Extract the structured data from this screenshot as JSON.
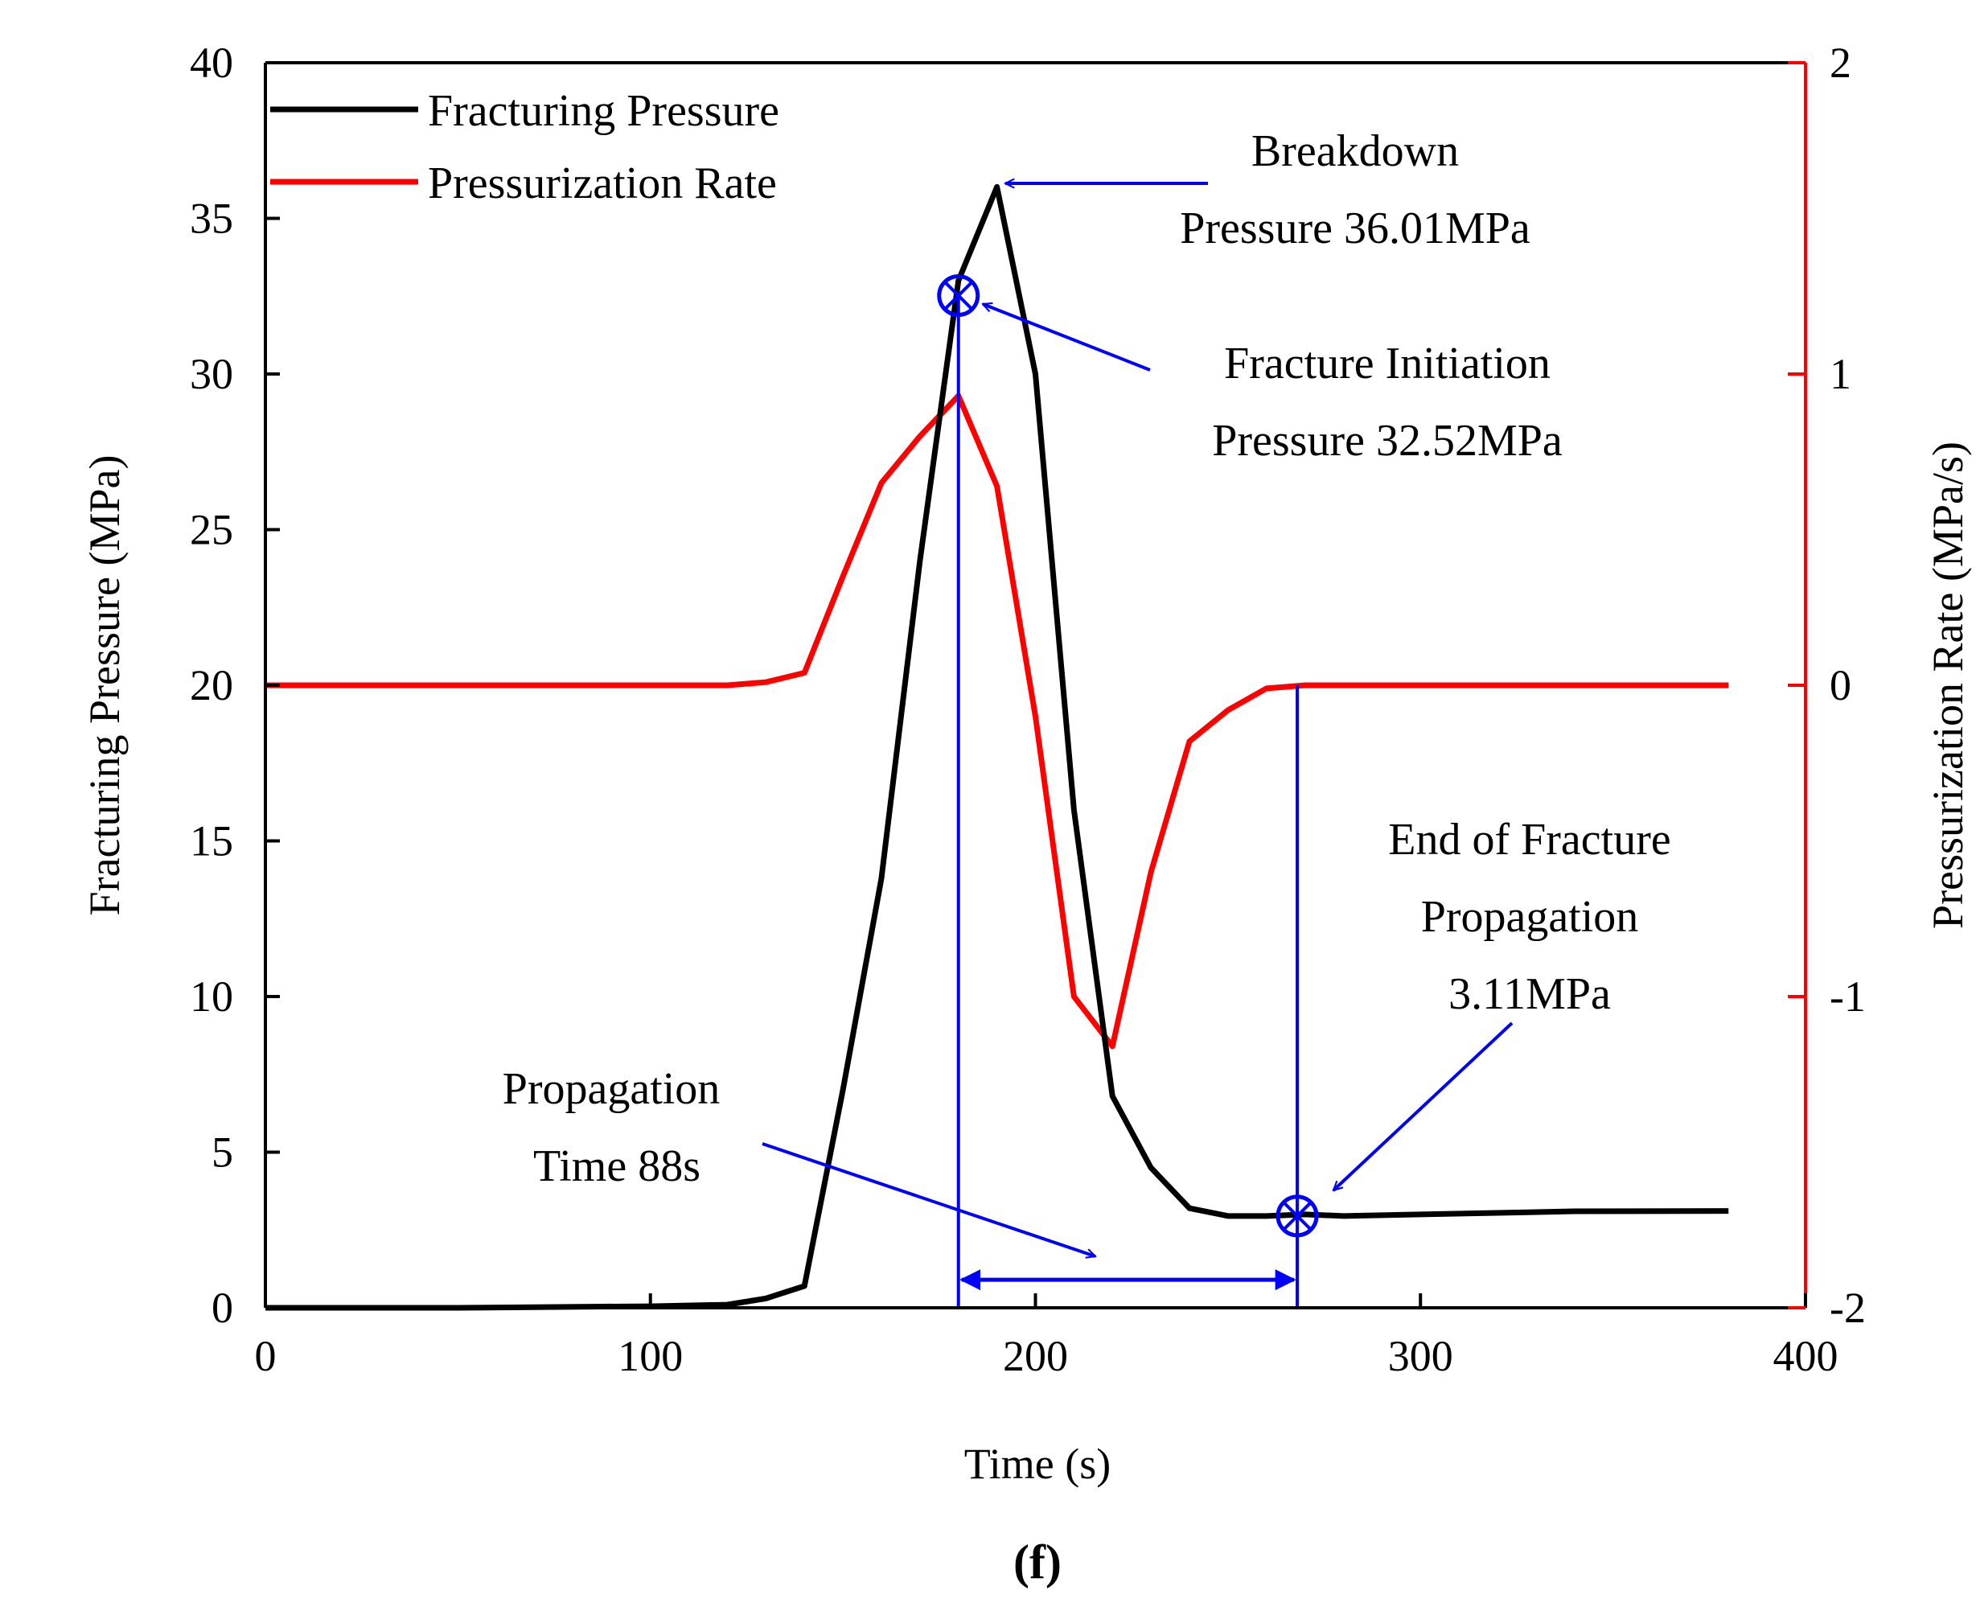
{
  "chart_data": {
    "type": "line",
    "panel_label": "(f)",
    "xlabel": "Time (s)",
    "ylabel_left": "Fracturing Pressure (MPa)",
    "ylabel_right": "Pressurization Rate (MPa/s)",
    "xlim": [
      0,
      400
    ],
    "ylim_left": [
      0,
      40
    ],
    "ylim_right": [
      -2,
      2
    ],
    "x_ticks": [
      "0",
      "100",
      "200",
      "300",
      "400"
    ],
    "y_left_ticks": [
      "0",
      "5",
      "10",
      "15",
      "20",
      "25",
      "30",
      "35",
      "40"
    ],
    "y_right_ticks": [
      "-2",
      "-1",
      "0",
      "1",
      "2"
    ],
    "legend": [
      "Fracturing Pressure",
      "Pressurization Rate"
    ],
    "colors": {
      "pressure": "#000000",
      "rate": "#ff0000",
      "annotation": "#0000ff",
      "right_axis": "#ff0000"
    },
    "series": [
      {
        "name": "Fracturing Pressure",
        "axis": "left",
        "x": [
          0,
          50,
          100,
          120,
          130,
          140,
          150,
          160,
          170,
          180,
          190,
          200,
          210,
          220,
          230,
          240,
          250,
          260,
          270,
          280,
          300,
          340,
          380
        ],
        "values": [
          0,
          0,
          0.05,
          0.1,
          0.3,
          0.7,
          7.0,
          13.8,
          24.0,
          33.0,
          36.01,
          30.0,
          16.0,
          6.8,
          4.5,
          3.2,
          2.95,
          2.95,
          3.0,
          2.95,
          3.0,
          3.1,
          3.11
        ]
      },
      {
        "name": "Pressurization Rate",
        "axis": "right",
        "x": [
          0,
          50,
          100,
          120,
          130,
          140,
          150,
          160,
          170,
          180,
          190,
          200,
          210,
          220,
          230,
          240,
          250,
          260,
          270,
          280,
          300,
          340,
          380
        ],
        "values": [
          0,
          0,
          0,
          0,
          0.01,
          0.04,
          0.35,
          0.65,
          0.8,
          0.93,
          0.64,
          -0.1,
          -1.0,
          -1.16,
          -0.6,
          -0.18,
          -0.08,
          -0.01,
          0,
          0,
          0,
          0,
          0
        ]
      }
    ],
    "annotations": {
      "breakdown": {
        "line1": "Breakdown",
        "line2": "Pressure 36.01MPa",
        "x": 190,
        "y": 36.01
      },
      "initiation": {
        "line1": "Fracture Initiation",
        "line2": "Pressure 32.52MPa",
        "x": 180,
        "y": 32.52
      },
      "end_propagation": {
        "line1": "End of Fracture",
        "line2": "Propagation",
        "line3": "3.11MPa",
        "x": 268,
        "y": 2.95
      },
      "propagation_time": {
        "line1": "Propagation",
        "line2": "Time 88s",
        "x_start": 180,
        "x_end": 268,
        "y": 0.9
      }
    }
  }
}
